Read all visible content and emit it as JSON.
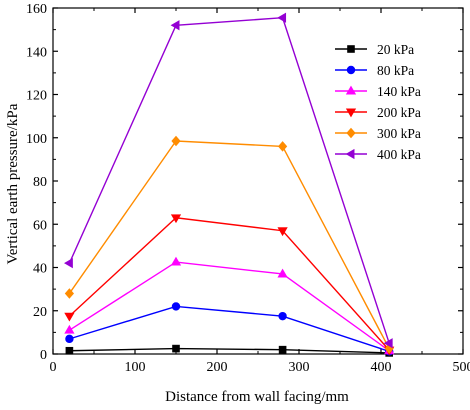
{
  "chart_data": {
    "type": "line",
    "xlabel": "Distance from wall facing/mm",
    "ylabel": "Vertical earth pressure/kPa",
    "xlim": [
      0,
      500
    ],
    "ylim": [
      0,
      160
    ],
    "xticks": [
      0,
      100,
      200,
      300,
      400,
      500
    ],
    "yticks": [
      0,
      20,
      40,
      60,
      80,
      100,
      120,
      140,
      160
    ],
    "grid": false,
    "legend_position": "top-right",
    "x": [
      20,
      150,
      280,
      410
    ],
    "series": [
      {
        "name": "20 kPa",
        "color": "#000000",
        "marker": "square",
        "values": [
          1.5,
          2.5,
          2.0,
          0.5
        ]
      },
      {
        "name": "80 kPa",
        "color": "#0000ff",
        "marker": "circle",
        "values": [
          7,
          22,
          17.5,
          1.2
        ]
      },
      {
        "name": "140 kPa",
        "color": "#ff00ff",
        "marker": "triangle-up",
        "values": [
          11,
          42.5,
          37,
          1.5
        ]
      },
      {
        "name": "200 kPa",
        "color": "#ff0000",
        "marker": "triangle-down",
        "values": [
          17.5,
          63,
          57,
          1.8
        ]
      },
      {
        "name": "300 kPa",
        "color": "#ff8c00",
        "marker": "diamond",
        "values": [
          28,
          98.5,
          96,
          2.5
        ]
      },
      {
        "name": "400 kPa",
        "color": "#9400d3",
        "marker": "triangle-left",
        "values": [
          42,
          152,
          155.5,
          5
        ]
      }
    ]
  }
}
